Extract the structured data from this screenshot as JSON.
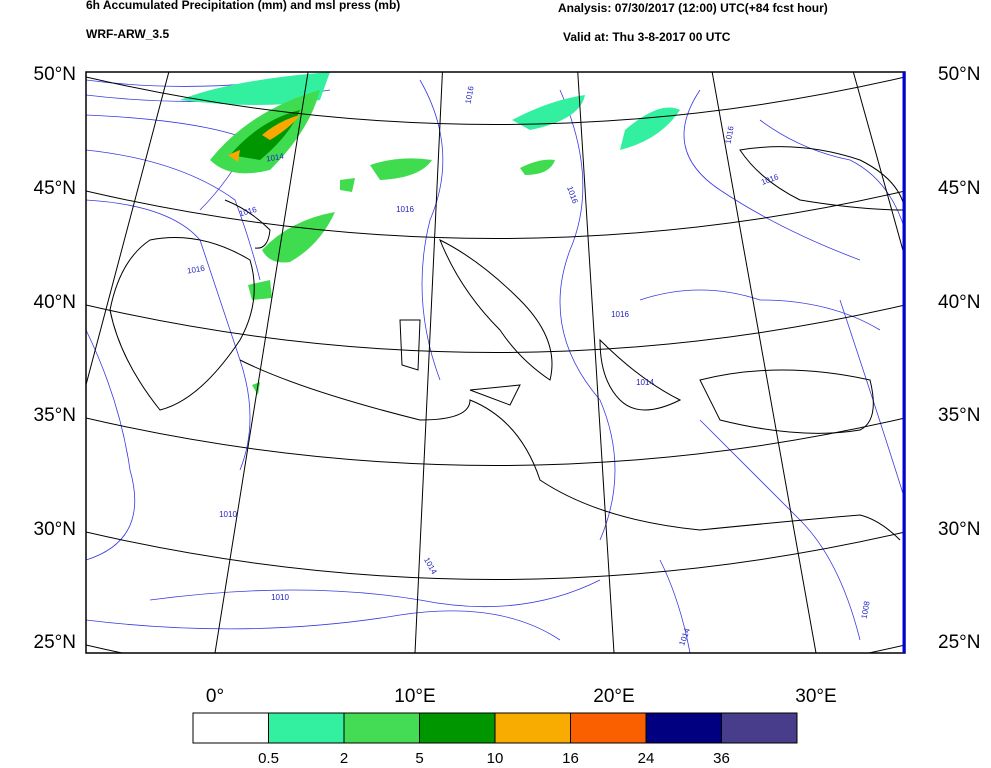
{
  "header": {
    "title": "6h Accumulated Precipitation (mm) and msl press (mb)",
    "model": "WRF-ARW_3.5",
    "analysis": "Analysis: 07/30/2017 (12:00) UTC(+84 fcst hour)",
    "valid": "Valid at: Thu 3-8-2017 00 UTC"
  },
  "map": {
    "lat_labels": [
      "50°N",
      "45°N",
      "40°N",
      "35°N",
      "30°N",
      "25°N"
    ],
    "lon_labels": [
      "0°",
      "10°E",
      "20°E",
      "30°E"
    ],
    "isobar_labels": [
      "1016",
      "1014",
      "1016",
      "1016",
      "1016",
      "1016",
      "1016",
      "1016",
      "1014",
      "1016",
      "1010",
      "1014",
      "1010",
      "1014",
      "1008"
    ]
  },
  "colorbar": {
    "colors": [
      "#ffffff",
      "#33f0a0",
      "#44dc55",
      "#009600",
      "#f8ab00",
      "#fa6000",
      "#000080",
      "#483d8b"
    ],
    "labels": [
      "0.5",
      "2",
      "5",
      "10",
      "16",
      "24",
      "36"
    ]
  }
}
